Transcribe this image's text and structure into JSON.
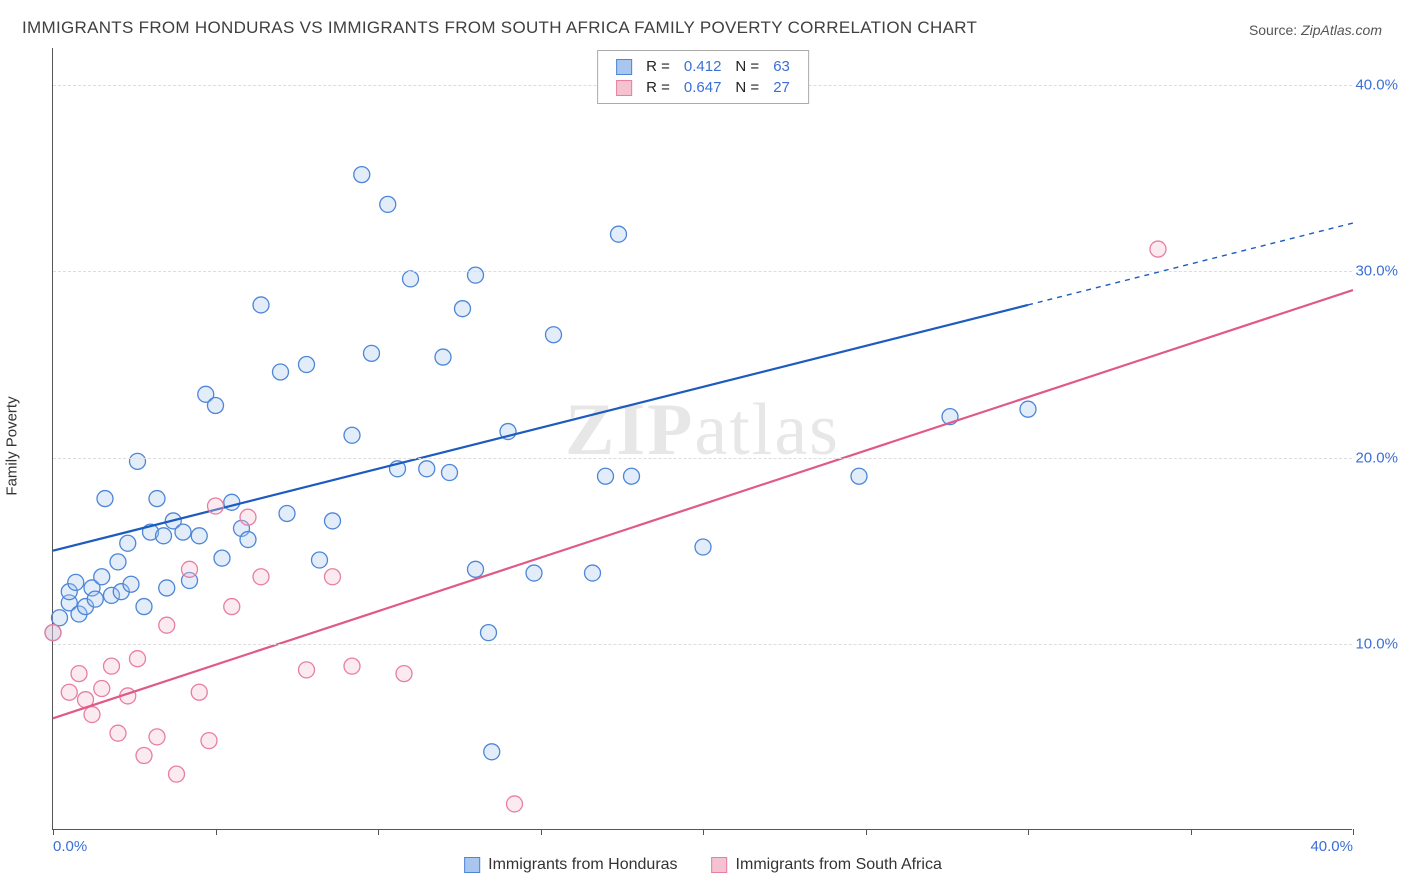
{
  "title": "IMMIGRANTS FROM HONDURAS VS IMMIGRANTS FROM SOUTH AFRICA FAMILY POVERTY CORRELATION CHART",
  "source_label": "Source:",
  "source_value": "ZipAtlas.com",
  "ylabel": "Family Poverty",
  "watermark": "ZIPatlas",
  "chart": {
    "type": "scatter",
    "xlim": [
      0,
      40
    ],
    "ylim": [
      0,
      42
    ],
    "x_ticks": [
      0,
      5,
      10,
      15,
      20,
      25,
      30,
      35,
      40
    ],
    "x_tick_labels": {
      "0": "0.0%",
      "40": "40.0%"
    },
    "y_grid": [
      10,
      20,
      30,
      40
    ],
    "y_tick_labels": {
      "10": "10.0%",
      "20": "20.0%",
      "30": "30.0%",
      "40": "40.0%"
    },
    "background_color": "#ffffff",
    "grid_color": "#dddddd",
    "axis_color": "#555555",
    "tick_label_color": "#3b6fd6",
    "marker_radius": 8,
    "marker_stroke_width": 1.3,
    "marker_fill_opacity": 0.32,
    "line_width": 2.2,
    "series": [
      {
        "name": "Immigrants from Honduras",
        "color_stroke": "#4c86d8",
        "color_fill": "#a9c7ee",
        "line_color": "#1d5bbf",
        "R": "0.412",
        "N": "63",
        "regression": {
          "x1": 0,
          "y1": 15.0,
          "x2": 30,
          "y2": 28.2,
          "x2_ext": 40,
          "y2_ext": 32.6
        },
        "points": [
          [
            0.0,
            10.6
          ],
          [
            0.2,
            11.4
          ],
          [
            0.5,
            12.2
          ],
          [
            0.5,
            12.8
          ],
          [
            0.7,
            13.3
          ],
          [
            0.8,
            11.6
          ],
          [
            1.0,
            12.0
          ],
          [
            1.2,
            13.0
          ],
          [
            1.3,
            12.4
          ],
          [
            1.5,
            13.6
          ],
          [
            1.6,
            17.8
          ],
          [
            1.8,
            12.6
          ],
          [
            2.0,
            14.4
          ],
          [
            2.1,
            12.8
          ],
          [
            2.3,
            15.4
          ],
          [
            2.4,
            13.2
          ],
          [
            2.6,
            19.8
          ],
          [
            2.8,
            12.0
          ],
          [
            3.0,
            16.0
          ],
          [
            3.2,
            17.8
          ],
          [
            3.4,
            15.8
          ],
          [
            3.5,
            13.0
          ],
          [
            3.7,
            16.6
          ],
          [
            4.0,
            16.0
          ],
          [
            4.2,
            13.4
          ],
          [
            4.5,
            15.8
          ],
          [
            4.7,
            23.4
          ],
          [
            5.0,
            22.8
          ],
          [
            5.2,
            14.6
          ],
          [
            5.5,
            17.6
          ],
          [
            5.8,
            16.2
          ],
          [
            6.0,
            15.6
          ],
          [
            6.4,
            28.2
          ],
          [
            7.0,
            24.6
          ],
          [
            7.2,
            17.0
          ],
          [
            7.8,
            25.0
          ],
          [
            8.2,
            14.5
          ],
          [
            8.6,
            16.6
          ],
          [
            9.2,
            21.2
          ],
          [
            9.5,
            35.2
          ],
          [
            9.8,
            25.6
          ],
          [
            10.3,
            33.6
          ],
          [
            10.6,
            19.4
          ],
          [
            11.0,
            29.6
          ],
          [
            11.5,
            19.4
          ],
          [
            12.0,
            25.4
          ],
          [
            12.2,
            19.2
          ],
          [
            12.6,
            28.0
          ],
          [
            13.0,
            14.0
          ],
          [
            13.4,
            10.6
          ],
          [
            13.5,
            4.2
          ],
          [
            14.0,
            21.4
          ],
          [
            14.8,
            13.8
          ],
          [
            15.4,
            26.6
          ],
          [
            16.6,
            13.8
          ],
          [
            17.0,
            19.0
          ],
          [
            17.4,
            32.0
          ],
          [
            17.8,
            19.0
          ],
          [
            20.0,
            15.2
          ],
          [
            24.8,
            19.0
          ],
          [
            27.6,
            22.2
          ],
          [
            30.0,
            22.6
          ],
          [
            13.0,
            29.8
          ]
        ]
      },
      {
        "name": "Immigrants from South Africa",
        "color_stroke": "#e77fa0",
        "color_fill": "#f4c2d0",
        "line_color": "#e05a87",
        "R": "0.647",
        "N": "27",
        "regression": {
          "x1": 0,
          "y1": 6.0,
          "x2": 40,
          "y2": 29.0,
          "x2_ext": 40,
          "y2_ext": 29.0
        },
        "points": [
          [
            0.0,
            10.6
          ],
          [
            0.5,
            7.4
          ],
          [
            0.8,
            8.4
          ],
          [
            1.0,
            7.0
          ],
          [
            1.2,
            6.2
          ],
          [
            1.5,
            7.6
          ],
          [
            1.8,
            8.8
          ],
          [
            2.0,
            5.2
          ],
          [
            2.3,
            7.2
          ],
          [
            2.6,
            9.2
          ],
          [
            2.8,
            4.0
          ],
          [
            3.2,
            5.0
          ],
          [
            3.5,
            11.0
          ],
          [
            3.8,
            3.0
          ],
          [
            4.2,
            14.0
          ],
          [
            4.5,
            7.4
          ],
          [
            4.8,
            4.8
          ],
          [
            5.0,
            17.4
          ],
          [
            5.5,
            12.0
          ],
          [
            6.0,
            16.8
          ],
          [
            6.4,
            13.6
          ],
          [
            7.8,
            8.6
          ],
          [
            8.6,
            13.6
          ],
          [
            9.2,
            8.8
          ],
          [
            10.8,
            8.4
          ],
          [
            14.2,
            1.4
          ],
          [
            34.0,
            31.2
          ]
        ]
      }
    ]
  },
  "legend_bottom": [
    {
      "label": "Immigrants from Honduras",
      "fill": "#a9c7ee",
      "stroke": "#4c86d8"
    },
    {
      "label": "Immigrants from South Africa",
      "fill": "#f4c2d0",
      "stroke": "#e77fa0"
    }
  ]
}
